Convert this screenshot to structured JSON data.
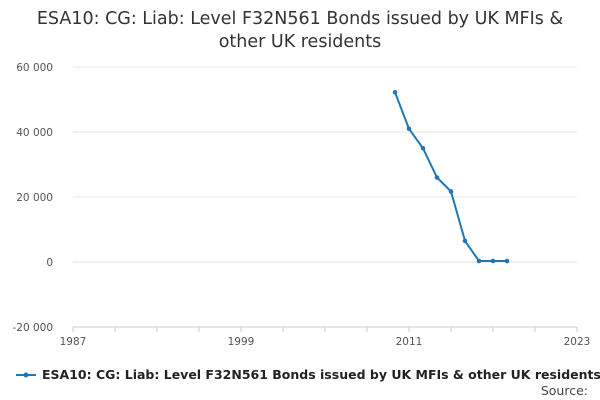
{
  "chart_data": {
    "type": "line",
    "title_lines": [
      "ESA10: CG: Liab: Level F32N561 Bonds issued by UK MFIs &",
      "other UK residents"
    ],
    "x": [
      2010,
      2011,
      2012,
      2013,
      2014,
      2015,
      2016,
      2017,
      2018
    ],
    "series": [
      {
        "name": "ESA10: CG: Liab: Level F32N561 Bonds issued by UK MFIs & other UK residents",
        "color": "#1f77b4",
        "values": [
          52200,
          41000,
          35000,
          26000,
          21700,
          6500,
          300,
          300,
          300
        ]
      }
    ],
    "xlim": [
      1987,
      2023
    ],
    "x_ticks": [
      1987,
      1999,
      2011,
      2023
    ],
    "x_tick_labels": [
      "1987",
      "1999",
      "2011",
      "2023"
    ],
    "x_minor_ticks": [
      1987,
      1990,
      1993,
      1996,
      1999,
      2002,
      2005,
      2008,
      2011,
      2014,
      2017,
      2020,
      2023
    ],
    "ylim": [
      -20000,
      60000
    ],
    "y_ticks": [
      -20000,
      0,
      20000,
      40000,
      60000
    ],
    "y_tick_labels": [
      "-20 000",
      "0",
      "20 000",
      "40 000",
      "60 000"
    ],
    "grid": true,
    "legend_position": "bottom-left",
    "source_label": "Source:"
  }
}
